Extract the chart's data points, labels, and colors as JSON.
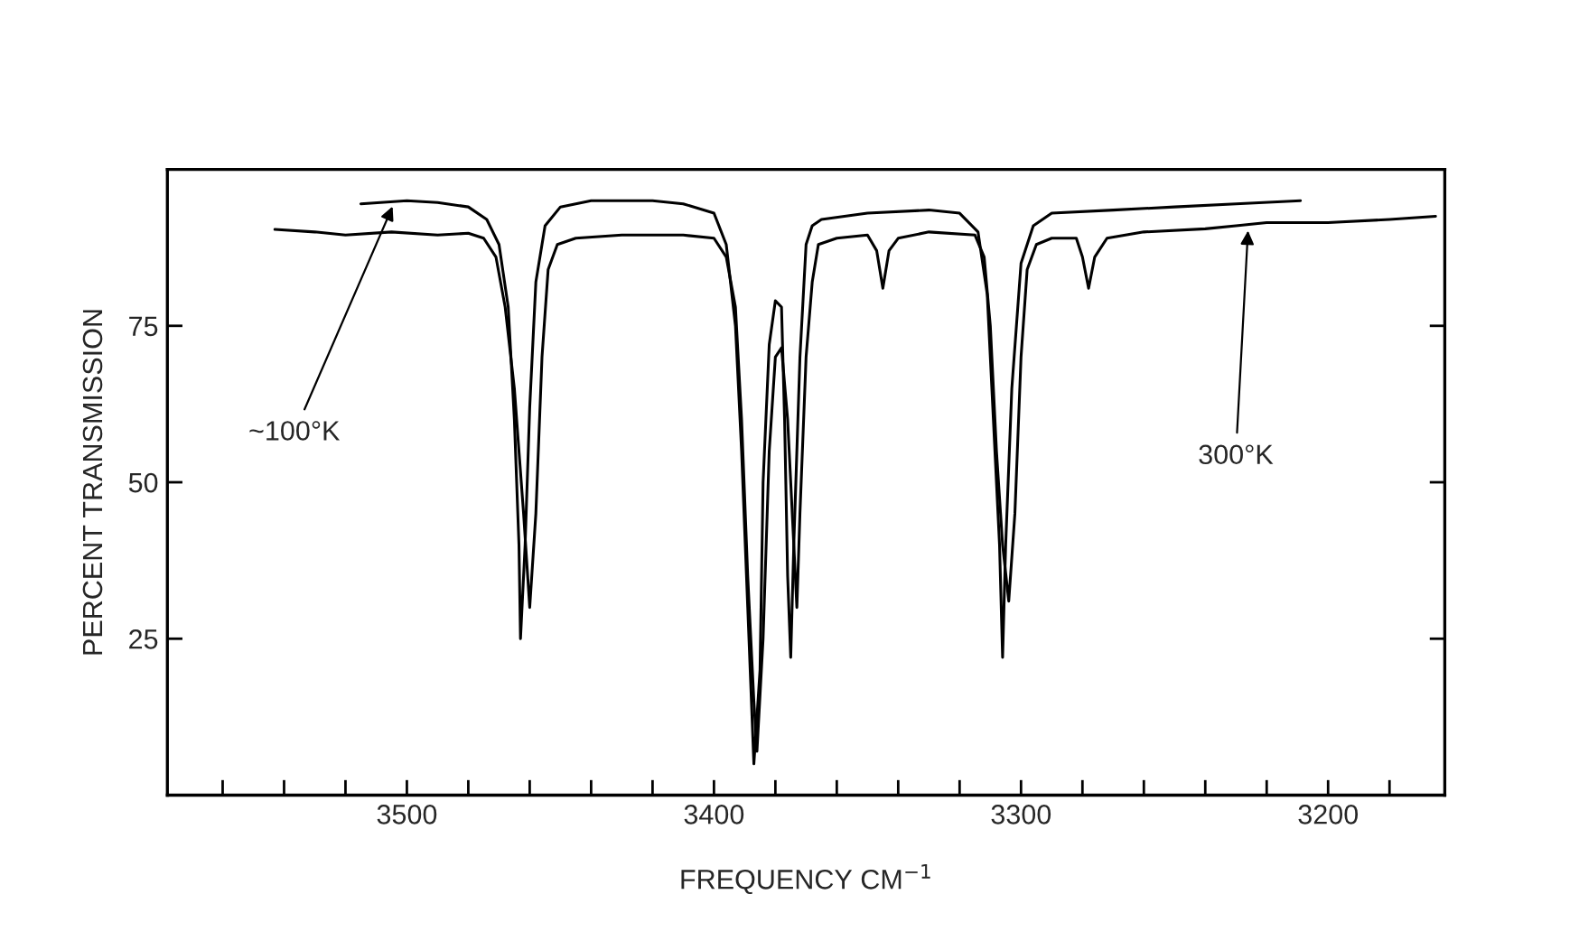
{
  "chart_data": {
    "type": "line",
    "xlabel": "FREQUENCY CM$^{−1}$",
    "ylabel": "PERCENT TRANSMISSION",
    "xlim": [
      3578,
      3162
    ],
    "ylim": [
      0,
      100
    ],
    "xticks": [
      {
        "value": 3560,
        "label": null
      },
      {
        "value": 3540,
        "label": null
      },
      {
        "value": 3520,
        "label": null
      },
      3500,
      {
        "value": 3480,
        "label": null
      },
      {
        "value": 3460,
        "label": null
      },
      {
        "value": 3440,
        "label": null
      },
      {
        "value": 3420,
        "label": null
      },
      3400,
      {
        "value": 3380,
        "label": null
      },
      {
        "value": 3360,
        "label": null
      },
      {
        "value": 3340,
        "label": null
      },
      {
        "value": 3320,
        "label": null
      },
      3300,
      {
        "value": 3280,
        "label": null
      },
      {
        "value": 3260,
        "label": null
      },
      {
        "value": 3240,
        "label": null
      },
      {
        "value": 3220,
        "label": null
      },
      3200,
      {
        "value": 3180,
        "label": null
      }
    ],
    "yticks": [
      25,
      50,
      75
    ],
    "grid": false,
    "marker": "none",
    "line_style": "solid",
    "series": [
      {
        "color": "#000000",
        "x": [
          3515,
          3500,
          3490,
          3480,
          3474,
          3470,
          3467,
          3465,
          3463.5,
          3463,
          3461.5,
          3460,
          3458,
          3455,
          3450,
          3440,
          3420,
          3410,
          3400,
          3396,
          3393,
          3391,
          3389,
          3387,
          3385,
          3384,
          3382,
          3380,
          3378,
          3377,
          3376,
          3375,
          3374,
          3372,
          3370,
          3368,
          3365,
          3350,
          3330,
          3320,
          3314,
          3311,
          3309,
          3307,
          3306,
          3305,
          3303,
          3300,
          3296,
          3290,
          3270,
          3250,
          3230,
          3209
        ],
        "values": [
          94.5,
          95,
          94.7,
          94,
          92,
          88,
          78,
          60,
          40,
          25,
          40,
          62,
          82,
          91,
          94,
          95,
          95,
          94.5,
          93,
          88,
          75,
          55,
          30,
          5,
          20,
          50,
          72,
          79,
          78,
          60,
          35,
          22,
          40,
          70,
          88,
          91,
          92,
          93,
          93.5,
          93,
          90,
          80,
          60,
          40,
          22,
          40,
          65,
          85,
          91,
          93,
          93.5,
          94,
          94.5,
          95
        ]
      },
      {
        "color": "#000000",
        "x": [
          3543,
          3530,
          3520,
          3505,
          3490,
          3480,
          3475,
          3471,
          3468,
          3465,
          3462,
          3460,
          3458,
          3456,
          3454,
          3451,
          3445,
          3430,
          3410,
          3400,
          3396,
          3393,
          3391,
          3389,
          3387,
          3386,
          3384,
          3382,
          3380,
          3378,
          3376,
          3374,
          3373,
          3372,
          3370,
          3368,
          3366,
          3360,
          3350,
          3347,
          3345,
          3343,
          3340,
          3330,
          3315,
          3312,
          3310,
          3308,
          3306,
          3304,
          3302,
          3300,
          3298,
          3295,
          3290,
          3282,
          3280,
          3278,
          3276,
          3272,
          3260,
          3240,
          3230,
          3220,
          3200,
          3180,
          3165
        ],
        "values": [
          90.4,
          90,
          89.5,
          90,
          89.5,
          89.8,
          89,
          86,
          78,
          65,
          45,
          30,
          45,
          70,
          84,
          88,
          89,
          89.5,
          89.5,
          89,
          86,
          78,
          60,
          35,
          15,
          7,
          25,
          55,
          70,
          71.5,
          60,
          40,
          30,
          45,
          70,
          82,
          88,
          89,
          89.5,
          87,
          81,
          87,
          89,
          90,
          89.5,
          86,
          75,
          55,
          40,
          31,
          45,
          70,
          84,
          88,
          89,
          89,
          86,
          81,
          86,
          89,
          90,
          90.5,
          91,
          91.5,
          91.5,
          92,
          92.5
        ]
      }
    ],
    "annotations": [
      {
        "text": "~100°K",
        "x": 3504,
        "y": 94.8
      },
      {
        "text": "300°K",
        "x": 3226,
        "y": 91
      }
    ]
  }
}
